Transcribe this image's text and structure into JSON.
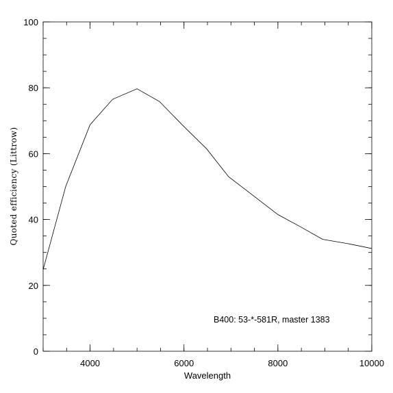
{
  "chart_data": {
    "type": "line",
    "xlabel": "Wavelength",
    "ylabel": "Quoted efficiency (Littrow)",
    "xlim": [
      3000,
      10000
    ],
    "ylim": [
      0,
      100
    ],
    "xticks": [
      4000,
      6000,
      8000,
      10000
    ],
    "yticks": [
      0,
      20,
      40,
      60,
      80,
      100
    ],
    "x_minor_step": 500,
    "y_minor_step": 5,
    "grid": false,
    "legend": "none",
    "annotation": "B400: 53-*-581R, master 1383",
    "series": [
      {
        "x": [
          3000,
          3480,
          4000,
          4480,
          5000,
          5480,
          6000,
          6480,
          6950,
          7480,
          8000,
          8480,
          8950,
          9480,
          10000
        ],
        "y": [
          24.8,
          50.0,
          68.8,
          76.5,
          79.7,
          75.8,
          68.2,
          61.5,
          53.0,
          47.2,
          41.5,
          37.8,
          34.0,
          32.7,
          31.2
        ]
      }
    ]
  }
}
